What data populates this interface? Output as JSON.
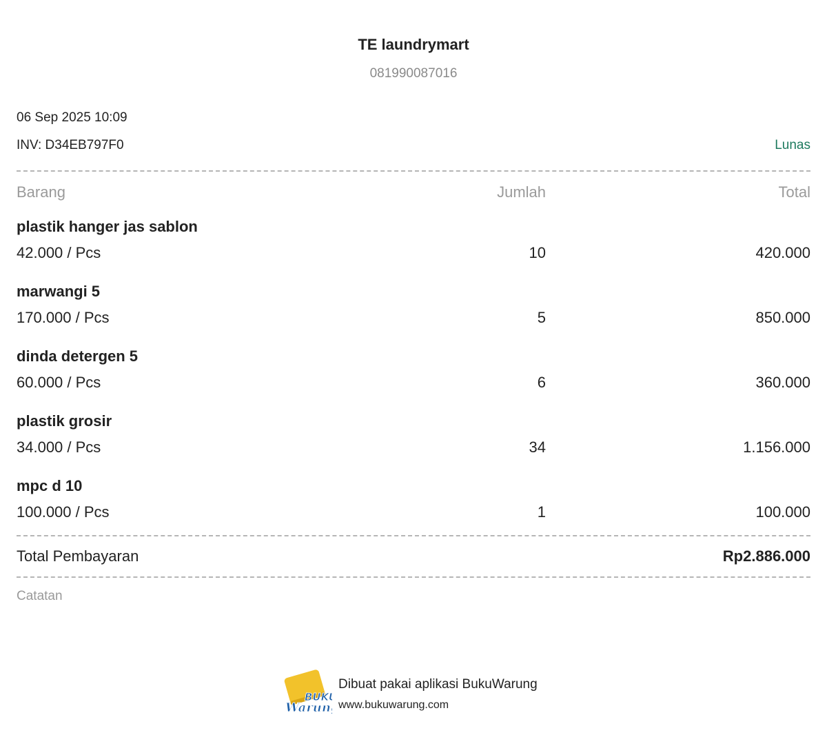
{
  "store": {
    "name": "TE laundrymart",
    "phone": "081990087016"
  },
  "transaction": {
    "datetime": "06 Sep 2025 10:09",
    "invoice": "INV: D34EB797F0",
    "status": "Lunas",
    "status_color": "#1e7a5e"
  },
  "table": {
    "headers": {
      "item": "Barang",
      "qty": "Jumlah",
      "total": "Total"
    },
    "rows": [
      {
        "name": "plastik hanger jas sablon",
        "price": "42.000 / Pcs",
        "qty": "10",
        "total": "420.000"
      },
      {
        "name": "marwangi 5",
        "price": "170.000 / Pcs",
        "qty": "5",
        "total": "850.000"
      },
      {
        "name": "dinda detergen 5",
        "price": "60.000 / Pcs",
        "qty": "6",
        "total": "360.000"
      },
      {
        "name": "plastik grosir",
        "price": "34.000 / Pcs",
        "qty": "34",
        "total": "1.156.000"
      },
      {
        "name": "mpc d 10",
        "price": "100.000 / Pcs",
        "qty": "1",
        "total": "100.000"
      }
    ]
  },
  "summary": {
    "label": "Total Pembayaran",
    "value": "Rp2.886.000"
  },
  "notes": {
    "label": "Catatan"
  },
  "footer": {
    "text": "Dibuat pakai aplikasi BukuWarung",
    "url": "www.bukuwarung.com",
    "logo_line1": "BUKU",
    "logo_line2": "Warung",
    "logo_yellow": "#f2c22b",
    "logo_blue": "#1d5fa8"
  }
}
